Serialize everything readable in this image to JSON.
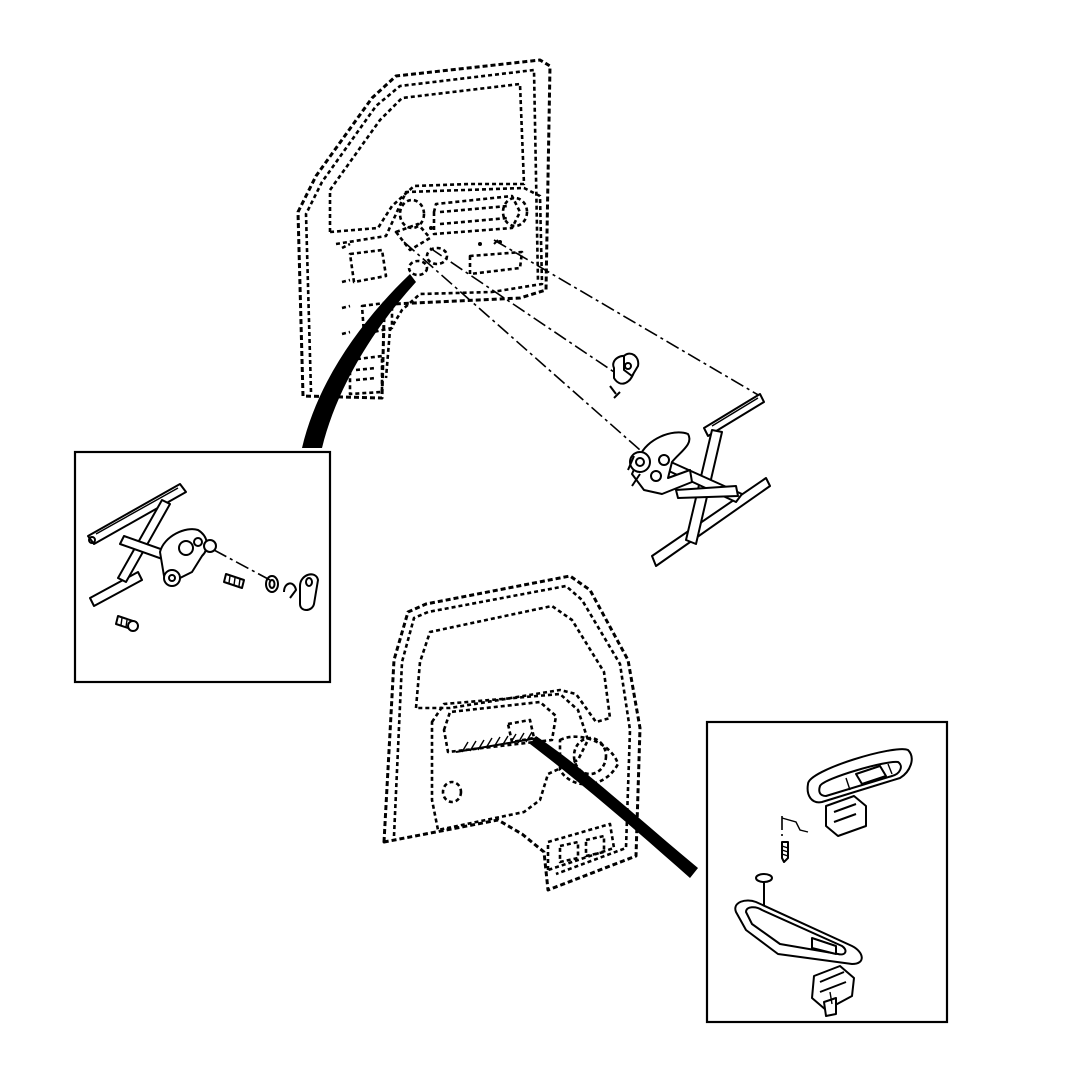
{
  "figure": {
    "views": [
      {
        "name": "front-door-inner-panel-window-regulator"
      },
      {
        "name": "window-regulator-detail-inset"
      },
      {
        "name": "door-trim-panel"
      },
      {
        "name": "power-window-switch-detail-inset"
      }
    ],
    "colors": {
      "line": "#000000",
      "background": "#ffffff"
    }
  }
}
